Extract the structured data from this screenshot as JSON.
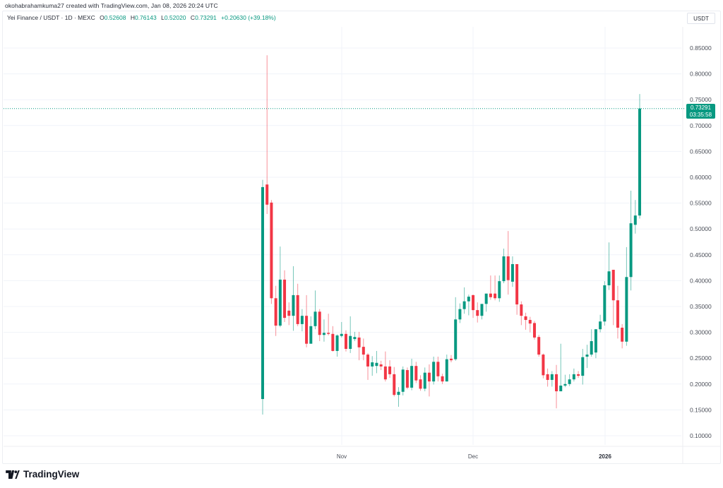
{
  "header": {
    "credit": "okohabrahamkuma27 created with TradingView.com, Jan 08, 2026 20:24 UTC"
  },
  "legend": {
    "symbol": "Yei Finance / USDT · 1D · MEXC",
    "open_label": "O",
    "open": "0.52608",
    "high_label": "H",
    "high": "0.76143",
    "low_label": "L",
    "low": "0.52020",
    "close_label": "C",
    "close": "0.73291",
    "change": "+0.20630 (+39.18%)"
  },
  "price_axis": {
    "currency": "USDT",
    "ticks": [
      "0.85000",
      "0.80000",
      "0.75000",
      "0.70000",
      "0.65000",
      "0.60000",
      "0.55000",
      "0.50000",
      "0.45000",
      "0.40000",
      "0.35000",
      "0.30000",
      "0.25000",
      "0.20000",
      "0.15000",
      "0.10000"
    ]
  },
  "last_price": {
    "price": "0.73291",
    "countdown": "03:35:58"
  },
  "time_axis": {
    "labels": [
      "Nov",
      "Dec",
      "2026"
    ]
  },
  "brand": {
    "name": "TradingView"
  },
  "colors": {
    "up": "#089981",
    "down": "#f23645",
    "grid": "#f0f3fa",
    "text": "#2a2e39"
  },
  "chart_data": {
    "type": "candlestick",
    "title": "Yei Finance / USDT · 1D · MEXC",
    "xlabel": "",
    "ylabel": "USDT",
    "ylim": [
      0.075,
      0.87
    ],
    "x_tick_labels": [
      "Nov",
      "Dec",
      "2026"
    ],
    "y_tick_labels": [
      "0.85000",
      "0.80000",
      "0.75000",
      "0.70000",
      "0.65000",
      "0.60000",
      "0.55000",
      "0.50000",
      "0.45000",
      "0.40000",
      "0.35000",
      "0.30000",
      "0.25000",
      "0.20000",
      "0.15000",
      "0.10000"
    ],
    "grid": true,
    "candles": [
      {
        "o": 0.171,
        "h": 0.595,
        "l": 0.141,
        "c": 0.581
      },
      {
        "o": 0.586,
        "h": 0.836,
        "l": 0.529,
        "c": 0.547
      },
      {
        "o": 0.551,
        "h": 0.556,
        "l": 0.355,
        "c": 0.366
      },
      {
        "o": 0.366,
        "h": 0.39,
        "l": 0.293,
        "c": 0.313
      },
      {
        "o": 0.313,
        "h": 0.466,
        "l": 0.31,
        "c": 0.402
      },
      {
        "o": 0.402,
        "h": 0.42,
        "l": 0.32,
        "c": 0.328
      },
      {
        "o": 0.342,
        "h": 0.358,
        "l": 0.314,
        "c": 0.332
      },
      {
        "o": 0.332,
        "h": 0.428,
        "l": 0.303,
        "c": 0.372
      },
      {
        "o": 0.372,
        "h": 0.394,
        "l": 0.312,
        "c": 0.316
      },
      {
        "o": 0.316,
        "h": 0.345,
        "l": 0.302,
        "c": 0.332
      },
      {
        "o": 0.332,
        "h": 0.372,
        "l": 0.271,
        "c": 0.278
      },
      {
        "o": 0.278,
        "h": 0.331,
        "l": 0.279,
        "c": 0.312
      },
      {
        "o": 0.312,
        "h": 0.381,
        "l": 0.306,
        "c": 0.34
      },
      {
        "o": 0.34,
        "h": 0.345,
        "l": 0.283,
        "c": 0.295
      },
      {
        "o": 0.295,
        "h": 0.325,
        "l": 0.282,
        "c": 0.299
      },
      {
        "o": 0.299,
        "h": 0.336,
        "l": 0.294,
        "c": 0.297
      },
      {
        "o": 0.297,
        "h": 0.312,
        "l": 0.263,
        "c": 0.264
      },
      {
        "o": 0.264,
        "h": 0.296,
        "l": 0.253,
        "c": 0.294
      },
      {
        "o": 0.293,
        "h": 0.32,
        "l": 0.29,
        "c": 0.297
      },
      {
        "o": 0.297,
        "h": 0.304,
        "l": 0.263,
        "c": 0.268
      },
      {
        "o": 0.268,
        "h": 0.331,
        "l": 0.26,
        "c": 0.293
      },
      {
        "o": 0.287,
        "h": 0.301,
        "l": 0.283,
        "c": 0.291
      },
      {
        "o": 0.29,
        "h": 0.301,
        "l": 0.246,
        "c": 0.271
      },
      {
        "o": 0.272,
        "h": 0.288,
        "l": 0.246,
        "c": 0.257
      },
      {
        "o": 0.257,
        "h": 0.26,
        "l": 0.208,
        "c": 0.234
      },
      {
        "o": 0.234,
        "h": 0.254,
        "l": 0.216,
        "c": 0.242
      },
      {
        "o": 0.235,
        "h": 0.264,
        "l": 0.221,
        "c": 0.241
      },
      {
        "o": 0.238,
        "h": 0.245,
        "l": 0.227,
        "c": 0.234
      },
      {
        "o": 0.234,
        "h": 0.263,
        "l": 0.205,
        "c": 0.209
      },
      {
        "o": 0.234,
        "h": 0.246,
        "l": 0.212,
        "c": 0.219
      },
      {
        "o": 0.219,
        "h": 0.233,
        "l": 0.176,
        "c": 0.179
      },
      {
        "o": 0.179,
        "h": 0.194,
        "l": 0.156,
        "c": 0.185
      },
      {
        "o": 0.185,
        "h": 0.234,
        "l": 0.178,
        "c": 0.228
      },
      {
        "o": 0.227,
        "h": 0.232,
        "l": 0.19,
        "c": 0.193
      },
      {
        "o": 0.193,
        "h": 0.249,
        "l": 0.188,
        "c": 0.235
      },
      {
        "o": 0.235,
        "h": 0.243,
        "l": 0.202,
        "c": 0.207
      },
      {
        "o": 0.209,
        "h": 0.217,
        "l": 0.187,
        "c": 0.191
      },
      {
        "o": 0.191,
        "h": 0.232,
        "l": 0.186,
        "c": 0.222
      },
      {
        "o": 0.222,
        "h": 0.238,
        "l": 0.176,
        "c": 0.205
      },
      {
        "o": 0.205,
        "h": 0.253,
        "l": 0.199,
        "c": 0.243
      },
      {
        "o": 0.243,
        "h": 0.253,
        "l": 0.205,
        "c": 0.215
      },
      {
        "o": 0.215,
        "h": 0.22,
        "l": 0.2,
        "c": 0.205
      },
      {
        "o": 0.205,
        "h": 0.257,
        "l": 0.205,
        "c": 0.248
      },
      {
        "o": 0.249,
        "h": 0.256,
        "l": 0.242,
        "c": 0.246
      },
      {
        "o": 0.248,
        "h": 0.368,
        "l": 0.245,
        "c": 0.325
      },
      {
        "o": 0.325,
        "h": 0.356,
        "l": 0.318,
        "c": 0.345
      },
      {
        "o": 0.345,
        "h": 0.387,
        "l": 0.336,
        "c": 0.36
      },
      {
        "o": 0.36,
        "h": 0.373,
        "l": 0.333,
        "c": 0.369
      },
      {
        "o": 0.372,
        "h": 0.373,
        "l": 0.328,
        "c": 0.343
      },
      {
        "o": 0.343,
        "h": 0.358,
        "l": 0.319,
        "c": 0.332
      },
      {
        "o": 0.332,
        "h": 0.34,
        "l": 0.325,
        "c": 0.355
      },
      {
        "o": 0.355,
        "h": 0.366,
        "l": 0.34,
        "c": 0.375
      },
      {
        "o": 0.375,
        "h": 0.41,
        "l": 0.363,
        "c": 0.368
      },
      {
        "o": 0.375,
        "h": 0.41,
        "l": 0.362,
        "c": 0.366
      },
      {
        "o": 0.366,
        "h": 0.41,
        "l": 0.359,
        "c": 0.399
      },
      {
        "o": 0.399,
        "h": 0.462,
        "l": 0.395,
        "c": 0.447
      },
      {
        "o": 0.447,
        "h": 0.496,
        "l": 0.373,
        "c": 0.401
      },
      {
        "o": 0.398,
        "h": 0.447,
        "l": 0.388,
        "c": 0.432
      },
      {
        "o": 0.432,
        "h": 0.432,
        "l": 0.334,
        "c": 0.354
      },
      {
        "o": 0.354,
        "h": 0.36,
        "l": 0.314,
        "c": 0.332
      },
      {
        "o": 0.331,
        "h": 0.338,
        "l": 0.305,
        "c": 0.324
      },
      {
        "o": 0.324,
        "h": 0.33,
        "l": 0.3,
        "c": 0.317
      },
      {
        "o": 0.318,
        "h": 0.322,
        "l": 0.286,
        "c": 0.29
      },
      {
        "o": 0.291,
        "h": 0.295,
        "l": 0.253,
        "c": 0.257
      },
      {
        "o": 0.257,
        "h": 0.259,
        "l": 0.211,
        "c": 0.217
      },
      {
        "o": 0.219,
        "h": 0.23,
        "l": 0.195,
        "c": 0.208
      },
      {
        "o": 0.208,
        "h": 0.225,
        "l": 0.195,
        "c": 0.219
      },
      {
        "o": 0.219,
        "h": 0.237,
        "l": 0.153,
        "c": 0.186
      },
      {
        "o": 0.186,
        "h": 0.278,
        "l": 0.187,
        "c": 0.197
      },
      {
        "o": 0.197,
        "h": 0.218,
        "l": 0.194,
        "c": 0.2
      },
      {
        "o": 0.2,
        "h": 0.219,
        "l": 0.196,
        "c": 0.209
      },
      {
        "o": 0.209,
        "h": 0.23,
        "l": 0.205,
        "c": 0.219
      },
      {
        "o": 0.219,
        "h": 0.225,
        "l": 0.212,
        "c": 0.216
      },
      {
        "o": 0.216,
        "h": 0.268,
        "l": 0.199,
        "c": 0.252
      },
      {
        "o": 0.253,
        "h": 0.276,
        "l": 0.231,
        "c": 0.257
      },
      {
        "o": 0.257,
        "h": 0.306,
        "l": 0.253,
        "c": 0.283
      },
      {
        "o": 0.261,
        "h": 0.306,
        "l": 0.25,
        "c": 0.306
      },
      {
        "o": 0.306,
        "h": 0.334,
        "l": 0.3,
        "c": 0.321
      },
      {
        "o": 0.321,
        "h": 0.399,
        "l": 0.313,
        "c": 0.391
      },
      {
        "o": 0.391,
        "h": 0.474,
        "l": 0.382,
        "c": 0.418
      },
      {
        "o": 0.421,
        "h": 0.421,
        "l": 0.314,
        "c": 0.362
      },
      {
        "o": 0.362,
        "h": 0.39,
        "l": 0.288,
        "c": 0.309
      },
      {
        "o": 0.309,
        "h": 0.316,
        "l": 0.269,
        "c": 0.282
      },
      {
        "o": 0.282,
        "h": 0.465,
        "l": 0.274,
        "c": 0.407
      },
      {
        "o": 0.407,
        "h": 0.574,
        "l": 0.381,
        "c": 0.511
      },
      {
        "o": 0.508,
        "h": 0.556,
        "l": 0.491,
        "c": 0.526
      },
      {
        "o": 0.526,
        "h": 0.761,
        "l": 0.52,
        "c": 0.733
      }
    ]
  }
}
